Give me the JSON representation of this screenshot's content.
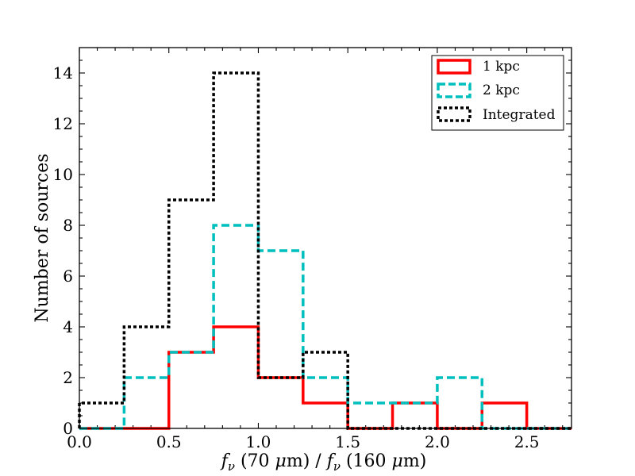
{
  "chart_data": {
    "type": "histogram",
    "title": "",
    "xlabel": "f_ν (70 μm) / f_ν (160 μm)",
    "xlabel_parts": {
      "f": "f",
      "nu": "ν",
      "text1": " (70 ",
      "mu": "μ",
      "text2": "m) / ",
      "text3": " (160 ",
      "text4": "m)"
    },
    "ylabel": "Number of sources",
    "xlim": [
      0.0,
      2.75
    ],
    "ylim": [
      0,
      15
    ],
    "xticks": [
      0.0,
      0.5,
      1.0,
      1.5,
      2.0,
      2.5
    ],
    "xtick_labels": [
      "0.0",
      "0.5",
      "1.0",
      "1.5",
      "2.0",
      "2.5"
    ],
    "yticks": [
      0,
      2,
      4,
      6,
      8,
      10,
      12,
      14
    ],
    "ytick_labels": [
      "0",
      "2",
      "4",
      "6",
      "8",
      "10",
      "12",
      "14"
    ],
    "bin_edges": [
      0.0,
      0.25,
      0.5,
      0.75,
      1.0,
      1.25,
      1.5,
      1.75,
      2.0,
      2.25,
      2.5,
      2.75
    ],
    "series": [
      {
        "name": "1 kpc",
        "color": "#ff0000",
        "style": "solid",
        "values": [
          0,
          0,
          3,
          4,
          2,
          1,
          0,
          1,
          0,
          1,
          0
        ]
      },
      {
        "name": "2 kpc",
        "color": "#00bfbf",
        "style": "dashed",
        "values": [
          0,
          2,
          3,
          8,
          7,
          2,
          1,
          1,
          2,
          0,
          0
        ]
      },
      {
        "name": "Integrated",
        "color": "#000000",
        "style": "dotted",
        "values": [
          1,
          4,
          9,
          14,
          2,
          3,
          0,
          0,
          0,
          0,
          0
        ]
      }
    ],
    "legend": [
      "1 kpc",
      "2 kpc",
      "Integrated"
    ],
    "legend_location": "top-right"
  }
}
